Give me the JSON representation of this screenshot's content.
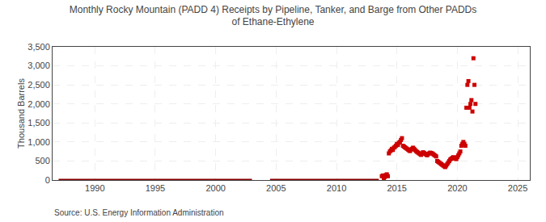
{
  "chart_data": {
    "type": "scatter",
    "title": "Monthly Rocky Mountain (PADD 4) Receipts by Pipeline, Tanker, and Barge from Other PADDs\nof Ethane-Ethylene",
    "ylabel": "Thousand Barrels",
    "annotations": [
      "Source: U.S. Energy Information Administration"
    ],
    "xlim": [
      1986.5,
      2026
    ],
    "ylim": [
      0,
      3500
    ],
    "xticks": [
      1990,
      1995,
      2000,
      2005,
      2010,
      2015,
      2020,
      2025
    ],
    "yticks": [
      0,
      500,
      {
        "value": 1000,
        "label": "1,000"
      },
      {
        "value": 1500,
        "label": "1,500"
      },
      {
        "value": 2000,
        "label": "2,000"
      },
      {
        "value": 2500,
        "label": "2,500"
      },
      {
        "value": 3000,
        "label": "3,000"
      },
      {
        "value": 3500,
        "label": "3,500"
      }
    ],
    "grid": true,
    "series": [
      {
        "type": "line",
        "color": "#8b0000",
        "x": [
          1987.0,
          2003.0
        ],
        "values": [
          0,
          0
        ]
      },
      {
        "type": "line",
        "color": "#8b0000",
        "x": [
          2004.5,
          2013.5
        ],
        "values": [
          0,
          0
        ]
      },
      {
        "type": "scatter",
        "marker": "square",
        "color": "#cc0000",
        "x": [
          2013.75,
          2013.833,
          2013.917,
          2014.0,
          2014.083,
          2014.167,
          2014.25,
          2014.333,
          2014.417,
          2014.5,
          2014.583,
          2014.667,
          2014.75,
          2014.833,
          2014.917,
          2015.0,
          2015.083,
          2015.167,
          2015.25,
          2015.333,
          2015.417,
          2015.5,
          2015.583,
          2015.667,
          2015.75,
          2015.833,
          2015.917,
          2016.0,
          2016.083,
          2016.167,
          2016.25,
          2016.333,
          2016.417,
          2016.5,
          2016.583,
          2016.667,
          2016.75,
          2016.833,
          2016.917,
          2017.0,
          2017.083,
          2017.167,
          2017.25,
          2017.333,
          2017.417,
          2017.5,
          2017.583,
          2017.667,
          2017.75,
          2017.833,
          2017.917,
          2018.0,
          2018.083,
          2018.167,
          2018.25,
          2018.333,
          2018.417,
          2018.5,
          2018.583,
          2018.667,
          2018.75,
          2018.833,
          2018.917,
          2019.0,
          2019.083,
          2019.167,
          2019.25,
          2019.333,
          2019.417,
          2019.5,
          2019.583,
          2019.667,
          2019.75,
          2019.833,
          2019.917,
          2020.0,
          2020.083,
          2020.167,
          2020.25,
          2020.333,
          2020.417,
          2020.5,
          2020.583,
          2020.667,
          2020.75,
          2020.833,
          2020.917,
          2021.0,
          2021.083,
          2021.167,
          2021.25,
          2021.333,
          2021.417,
          2021.5
        ],
        "values": [
          100,
          120,
          50,
          80,
          130,
          150,
          100,
          700,
          750,
          780,
          820,
          790,
          850,
          870,
          900,
          950,
          920,
          980,
          1000,
          1050,
          1100,
          900,
          880,
          860,
          840,
          820,
          800,
          780,
          760,
          800,
          820,
          850,
          820,
          790,
          760,
          740,
          720,
          700,
          680,
          660,
          700,
          730,
          710,
          690,
          670,
          650,
          680,
          700,
          720,
          710,
          700,
          680,
          660,
          640,
          620,
          500,
          480,
          460,
          440,
          420,
          400,
          380,
          360,
          340,
          380,
          420,
          460,
          500,
          540,
          560,
          580,
          600,
          580,
          560,
          550,
          600,
          650,
          700,
          750,
          900,
          950,
          1000,
          950,
          900,
          1900,
          2500,
          2600,
          1900,
          2000,
          2100,
          1800,
          3200,
          2500,
          2000
        ]
      }
    ]
  }
}
